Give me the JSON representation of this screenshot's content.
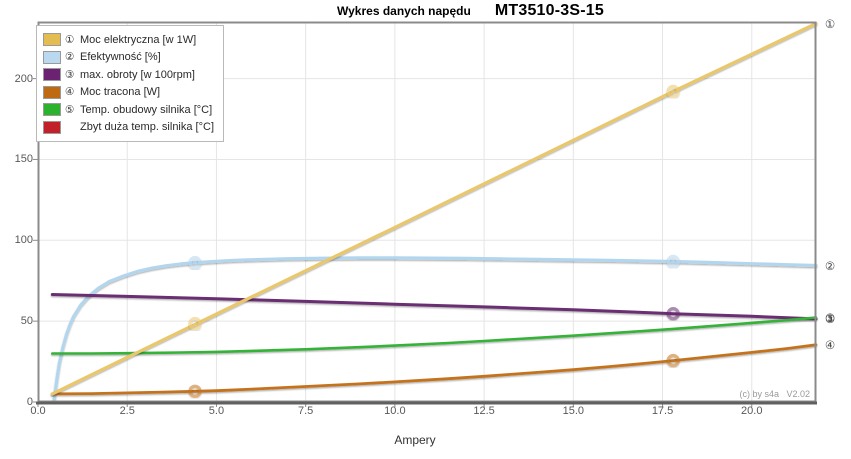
{
  "title": {
    "prefix": "Wykres danych napędu",
    "model": "MT3510-3S-15"
  },
  "watermark": "(c) by s4a   V2.02",
  "legend": {
    "items": [
      {
        "symbol": "①",
        "label": "Moc elektryczna [w 1W]",
        "color": "#e3bd52"
      },
      {
        "symbol": "②",
        "label": "Efektywność [%]",
        "color": "#bad9f1"
      },
      {
        "symbol": "③",
        "label": "max. obroty [w 100rpm]",
        "color": "#6b2371"
      },
      {
        "symbol": "④",
        "label": "Moc tracona [W]",
        "color": "#bd6a10"
      },
      {
        "symbol": "⑤",
        "label": "Temp. obudowy silnika [°C]",
        "color": "#2cb22c"
      },
      {
        "symbol": "",
        "label": "Zbyt duża temp. silnika [°C]",
        "color": "#c2212a"
      }
    ]
  },
  "chart_data": {
    "type": "line",
    "title": "Wykres danych napędu MT3510-3S-15",
    "xlabel": "Ampery",
    "ylabel": "",
    "xlim": [
      0,
      21.8
    ],
    "ylim": [
      0,
      235
    ],
    "grid": true,
    "legend_position": "top-left",
    "xticks": {
      "values": [
        0,
        2.5,
        5,
        7.5,
        10,
        12.5,
        15,
        17.5,
        20
      ],
      "labels": [
        "0.0",
        "2.5",
        "5.0",
        "7.5",
        "10.0",
        "12.5",
        "15.0",
        "17.5",
        "20.0"
      ]
    },
    "yticks": {
      "values": [
        0,
        50,
        100,
        150,
        200
      ],
      "labels": [
        "0",
        "50",
        "100",
        "150",
        "200"
      ]
    },
    "draw_order": [
      1,
      2,
      4,
      3,
      0
    ],
    "series": [
      {
        "name": "Moc elektryczna [w 1W]",
        "symbol": "①",
        "color": "#eac76b",
        "width": 3.2,
        "points": [
          [
            0.4,
            5
          ],
          [
            4.4,
            48
          ],
          [
            10,
            108
          ],
          [
            17.8,
            192
          ],
          [
            21.8,
            234
          ]
        ],
        "markers": [
          [
            4.4,
            48.5
          ],
          [
            17.8,
            192
          ]
        ]
      },
      {
        "name": "Efektywność [%]",
        "symbol": "②",
        "color": "#b3d6ef",
        "width": 3.2,
        "points": [
          [
            0.45,
            1
          ],
          [
            0.5,
            9
          ],
          [
            0.55,
            17
          ],
          [
            0.6,
            24
          ],
          [
            0.7,
            34
          ],
          [
            0.8,
            42
          ],
          [
            0.9,
            48
          ],
          [
            1,
            53
          ],
          [
            1.2,
            60
          ],
          [
            1.4,
            65
          ],
          [
            1.7,
            70.5
          ],
          [
            2,
            74.5
          ],
          [
            2.4,
            78
          ],
          [
            2.8,
            80.8
          ],
          [
            3.2,
            82.8
          ],
          [
            3.6,
            84.3
          ],
          [
            4,
            85.4
          ],
          [
            4.4,
            86.2
          ],
          [
            5,
            87
          ],
          [
            5.5,
            87.6
          ],
          [
            6,
            88
          ],
          [
            7,
            88.6
          ],
          [
            8,
            88.9
          ],
          [
            9,
            89.1
          ],
          [
            10,
            89.1
          ],
          [
            11,
            89
          ],
          [
            12,
            88.8
          ],
          [
            13,
            88.5
          ],
          [
            14,
            88.2
          ],
          [
            15,
            87.9
          ],
          [
            16,
            87.6
          ],
          [
            17,
            87.2
          ],
          [
            17.8,
            86.9
          ],
          [
            19,
            86.2
          ],
          [
            20,
            85.5
          ],
          [
            21,
            84.9
          ],
          [
            21.8,
            84.4
          ]
        ],
        "markers": [
          [
            4.4,
            86.2
          ],
          [
            17.8,
            86.9
          ]
        ]
      },
      {
        "name": "max. obroty [w 100rpm]",
        "symbol": "③",
        "color": "#6a2e72",
        "width": 3,
        "points": [
          [
            0.4,
            66.5
          ],
          [
            2.5,
            65.3
          ],
          [
            5,
            63.8
          ],
          [
            7.5,
            62.2
          ],
          [
            10,
            60.5
          ],
          [
            12.5,
            58.8
          ],
          [
            15,
            57
          ],
          [
            17.5,
            54.9
          ],
          [
            17.8,
            54.6
          ],
          [
            20,
            53
          ],
          [
            21.8,
            51.4
          ]
        ],
        "markers": [
          [
            17.8,
            54.6
          ]
        ]
      },
      {
        "name": "Moc tracona [W]",
        "symbol": "④",
        "color": "#c4731f",
        "width": 2.8,
        "points": [
          [
            0.4,
            5
          ],
          [
            1.5,
            5.2
          ],
          [
            2.5,
            5.6
          ],
          [
            3.5,
            6.1
          ],
          [
            4.4,
            6.6
          ],
          [
            5,
            7
          ],
          [
            6,
            8
          ],
          [
            7.5,
            9.6
          ],
          [
            9,
            11.2
          ],
          [
            10,
            12.4
          ],
          [
            11.5,
            14.4
          ],
          [
            12.5,
            15.9
          ],
          [
            14,
            18.3
          ],
          [
            15,
            20
          ],
          [
            16,
            21.9
          ],
          [
            17,
            23.9
          ],
          [
            17.8,
            25.6
          ],
          [
            19,
            28.4
          ],
          [
            20,
            30.7
          ],
          [
            21,
            33.1
          ],
          [
            21.8,
            35.4
          ]
        ],
        "markers": [
          [
            4.4,
            6.6
          ],
          [
            17.8,
            25.6
          ]
        ]
      },
      {
        "name": "Temp. obudowy silnika [°C]",
        "symbol": "⑤",
        "color": "#35b237",
        "width": 2.6,
        "points": [
          [
            0.4,
            30
          ],
          [
            1.5,
            30
          ],
          [
            2.5,
            30.2
          ],
          [
            4,
            30.6
          ],
          [
            5,
            31
          ],
          [
            6,
            31.6
          ],
          [
            7.5,
            32.6
          ],
          [
            9,
            33.9
          ],
          [
            10,
            34.9
          ],
          [
            11.5,
            36.5
          ],
          [
            12.5,
            37.7
          ],
          [
            14,
            39.7
          ],
          [
            15,
            41
          ],
          [
            16,
            42.5
          ],
          [
            17,
            44
          ],
          [
            17.8,
            45.2
          ],
          [
            19,
            47.2
          ],
          [
            20,
            48.9
          ],
          [
            21,
            50.6
          ],
          [
            21.8,
            52.2
          ]
        ],
        "markers": []
      },
      {
        "name": "Zbyt duża temp. silnika [°C]",
        "symbol": "",
        "color": "#c2212a",
        "width": 2.6,
        "points": [],
        "markers": []
      }
    ]
  }
}
